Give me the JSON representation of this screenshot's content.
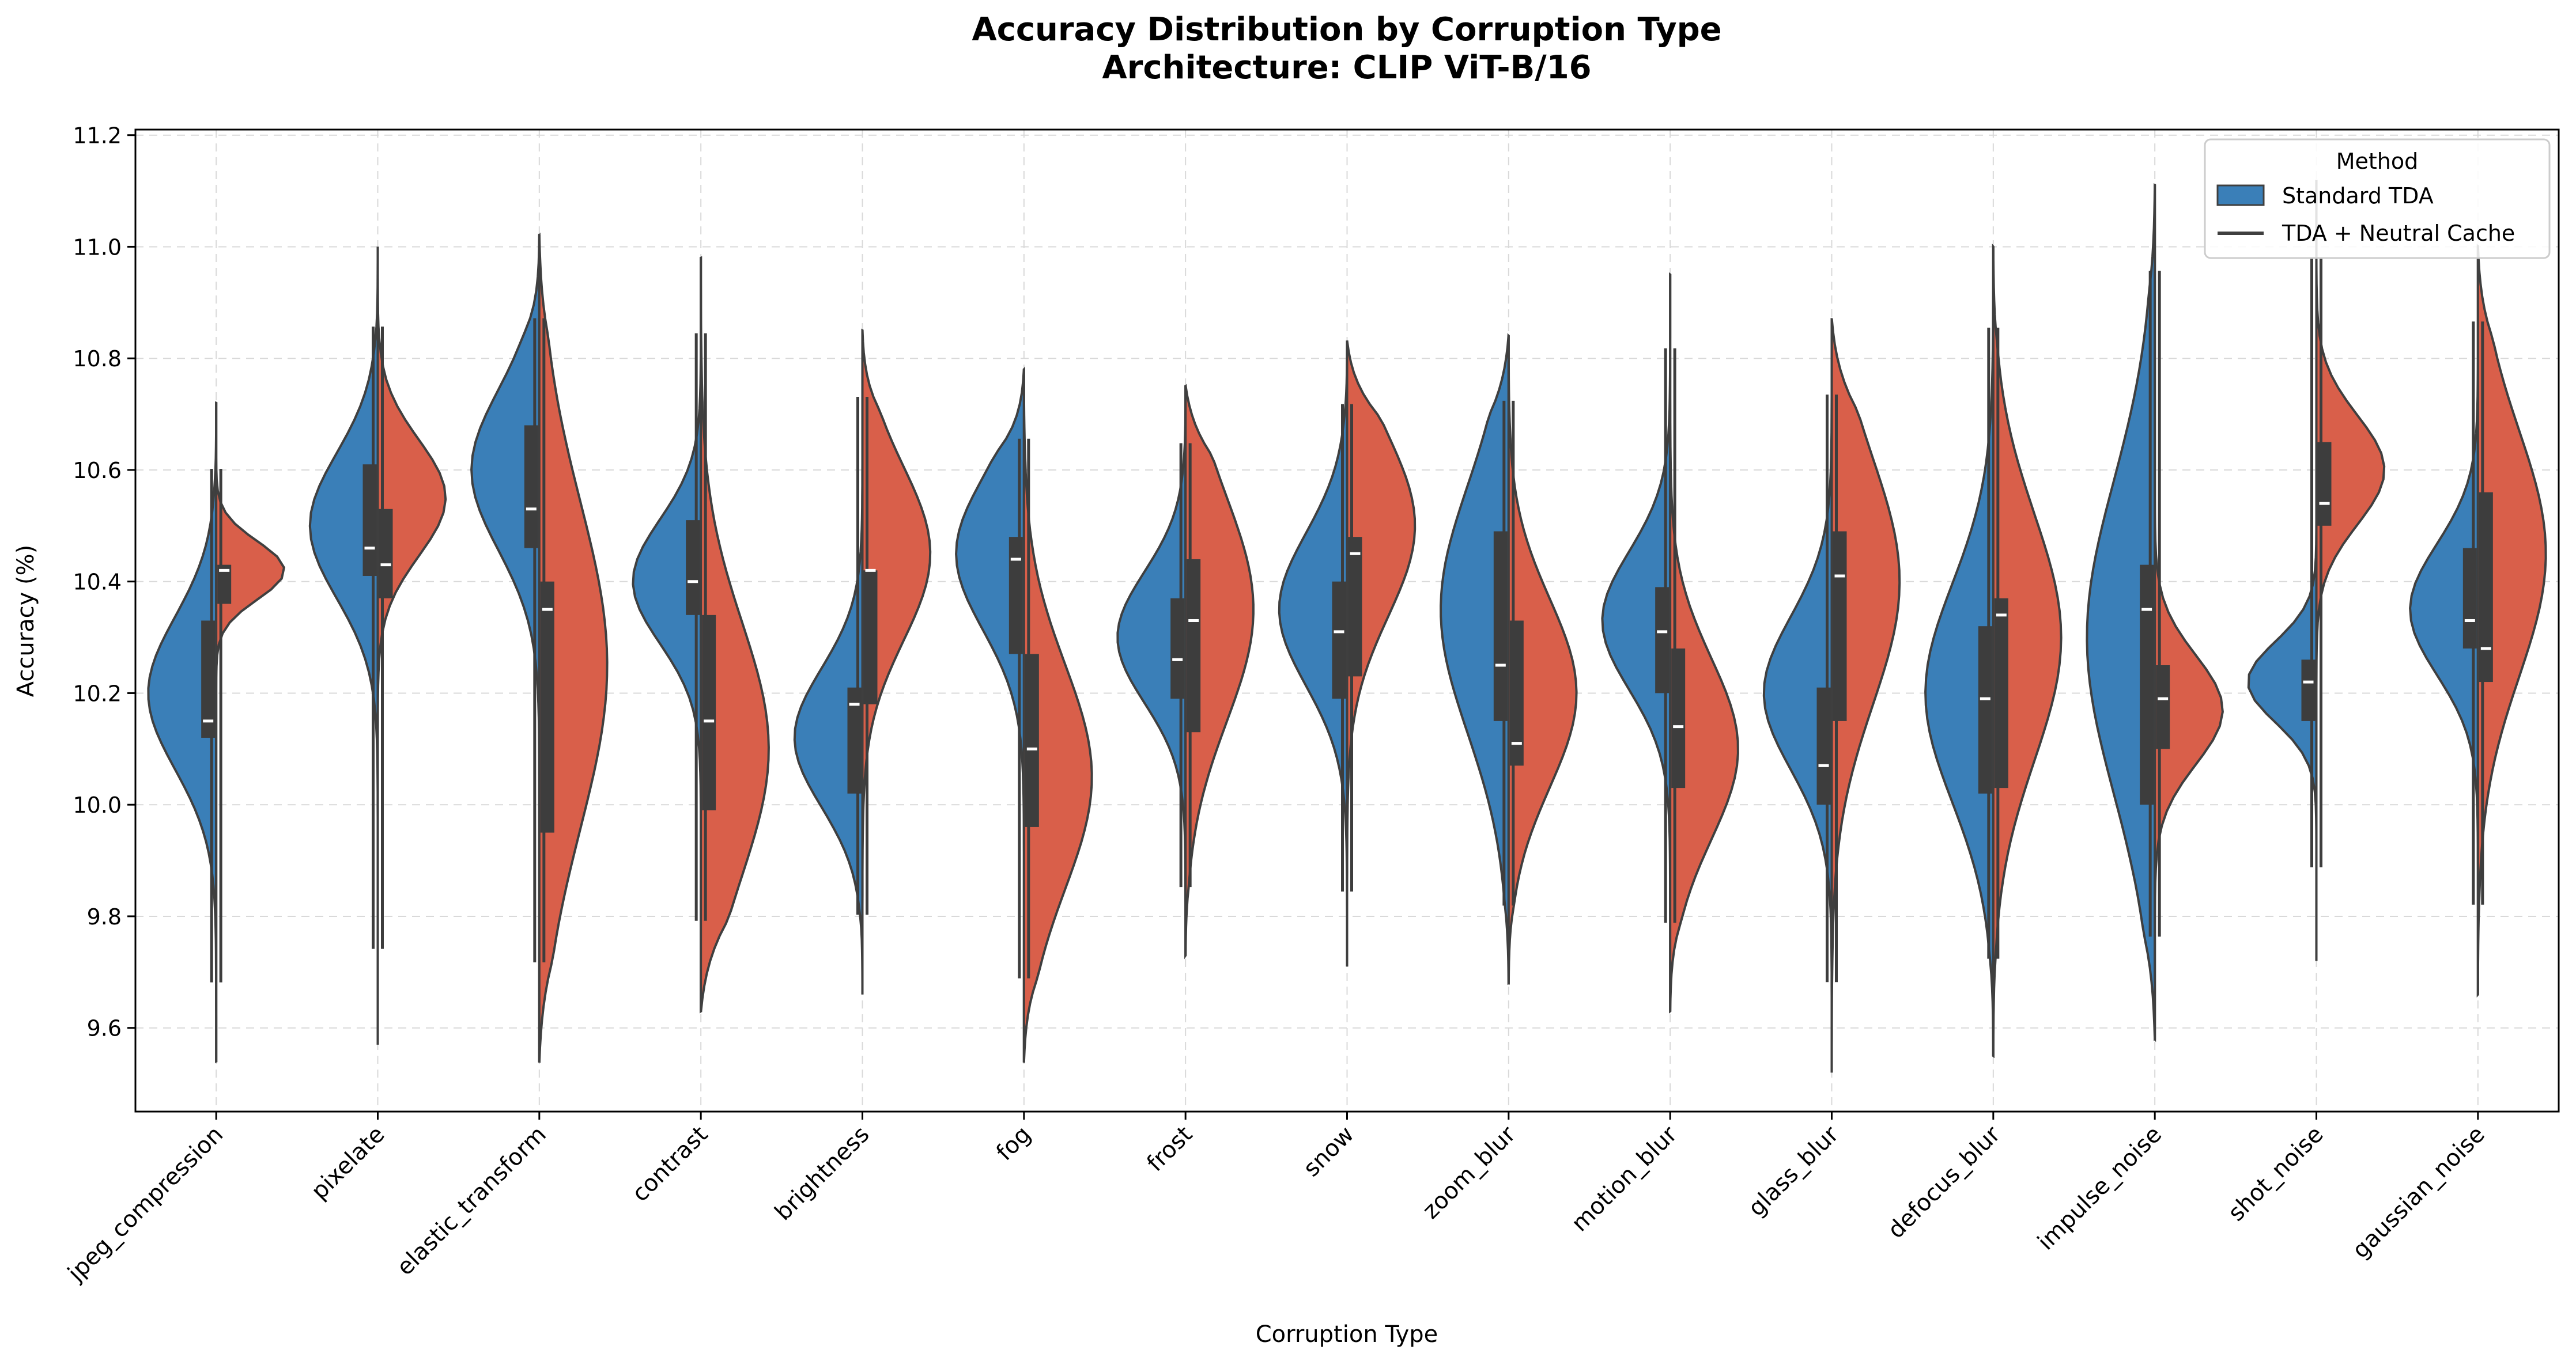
{
  "chart_data": {
    "type": "violin",
    "title_line1": "Accuracy Distribution by Corruption Type",
    "title_line2": "Architecture: CLIP ViT-B/16",
    "xlabel": "Corruption Type",
    "ylabel": "Accuracy (%)",
    "ylim": [
      9.45,
      11.21
    ],
    "yticks": [
      9.6,
      9.8,
      10.0,
      10.2,
      10.4,
      10.6,
      10.8,
      11.0,
      11.2
    ],
    "ytick_labels": [
      "9.6",
      "9.8",
      "10.0",
      "10.2",
      "10.4",
      "10.6",
      "10.8",
      "11.0",
      "11.2"
    ],
    "grid": true,
    "split": true,
    "legend": {
      "title": "Method",
      "position": "top-right",
      "entries": [
        {
          "label": "Standard TDA",
          "color": "#3a7fb8"
        },
        {
          "label": "TDA + Neutral Cache",
          "color": "#d95f4a"
        }
      ]
    },
    "colors": {
      "left": "#3a7fb8",
      "right": "#d95f4a",
      "edge": "#3f3f3f",
      "box": "#3d3d3d",
      "median": "#ffffff",
      "grid": "#d9d9d9"
    },
    "categories": [
      "jpeg_compression",
      "pixelate",
      "elastic_transform",
      "contrast",
      "brightness",
      "fog",
      "frost",
      "snow",
      "zoom_blur",
      "motion_blur",
      "glass_blur",
      "defocus_blur",
      "impulse_noise",
      "shot_noise",
      "gaussian_noise"
    ],
    "series": [
      {
        "name": "Standard TDA",
        "stats": [
          {
            "min": 9.54,
            "max": 10.72,
            "q1": 10.12,
            "q3": 10.33,
            "median": 10.15,
            "mode": 10.2
          },
          {
            "min": 9.57,
            "max": 11.0,
            "q1": 10.41,
            "q3": 10.61,
            "median": 10.46,
            "mode": 10.5
          },
          {
            "min": 9.54,
            "max": 11.02,
            "q1": 10.46,
            "q3": 10.68,
            "median": 10.53,
            "mode": 10.6
          },
          {
            "min": 9.63,
            "max": 10.98,
            "q1": 10.34,
            "q3": 10.51,
            "median": 10.4,
            "mode": 10.4
          },
          {
            "min": 9.66,
            "max": 10.85,
            "q1": 10.02,
            "q3": 10.21,
            "median": 10.18,
            "mode": 10.12
          },
          {
            "min": 9.54,
            "max": 10.78,
            "q1": 10.27,
            "q3": 10.48,
            "median": 10.44,
            "mode": 10.45
          },
          {
            "min": 9.73,
            "max": 10.75,
            "q1": 10.19,
            "q3": 10.37,
            "median": 10.26,
            "mode": 10.3
          },
          {
            "min": 9.71,
            "max": 10.83,
            "q1": 10.19,
            "q3": 10.4,
            "median": 10.31,
            "mode": 10.35
          },
          {
            "min": 9.68,
            "max": 10.84,
            "q1": 10.15,
            "q3": 10.49,
            "median": 10.25,
            "mode": 10.35
          },
          {
            "min": 9.63,
            "max": 10.95,
            "q1": 10.2,
            "q3": 10.39,
            "median": 10.31,
            "mode": 10.33
          },
          {
            "min": 9.52,
            "max": 10.87,
            "q1": 10.0,
            "q3": 10.21,
            "median": 10.07,
            "mode": 10.2
          },
          {
            "min": 9.55,
            "max": 11.0,
            "q1": 10.02,
            "q3": 10.32,
            "median": 10.19,
            "mode": 10.2
          },
          {
            "min": 9.58,
            "max": 11.11,
            "q1": 10.0,
            "q3": 10.43,
            "median": 10.35,
            "mode": 10.3
          },
          {
            "min": 9.72,
            "max": 11.12,
            "q1": 10.15,
            "q3": 10.26,
            "median": 10.22,
            "mode": 10.22
          },
          {
            "min": 9.66,
            "max": 11.0,
            "q1": 10.28,
            "q3": 10.46,
            "median": 10.33,
            "mode": 10.35
          }
        ]
      },
      {
        "name": "TDA + Neutral Cache",
        "stats": [
          {
            "min": 9.54,
            "max": 10.72,
            "q1": 10.36,
            "q3": 10.43,
            "median": 10.42,
            "mode": 10.42
          },
          {
            "min": 9.57,
            "max": 11.0,
            "q1": 10.37,
            "q3": 10.53,
            "median": 10.43,
            "mode": 10.55
          },
          {
            "min": 9.54,
            "max": 11.02,
            "q1": 9.95,
            "q3": 10.4,
            "median": 10.35,
            "mode": 10.25
          },
          {
            "min": 9.63,
            "max": 10.98,
            "q1": 9.99,
            "q3": 10.34,
            "median": 10.15,
            "mode": 10.1
          },
          {
            "min": 9.66,
            "max": 10.85,
            "q1": 10.18,
            "q3": 10.42,
            "median": 10.42,
            "mode": 10.45
          },
          {
            "min": 9.54,
            "max": 10.78,
            "q1": 9.96,
            "q3": 10.27,
            "median": 10.1,
            "mode": 10.05
          },
          {
            "min": 9.73,
            "max": 10.75,
            "q1": 10.13,
            "q3": 10.44,
            "median": 10.33,
            "mode": 10.35
          },
          {
            "min": 9.71,
            "max": 10.83,
            "q1": 10.23,
            "q3": 10.48,
            "median": 10.45,
            "mode": 10.5
          },
          {
            "min": 9.68,
            "max": 10.84,
            "q1": 10.07,
            "q3": 10.33,
            "median": 10.11,
            "mode": 10.2
          },
          {
            "min": 9.63,
            "max": 10.95,
            "q1": 10.03,
            "q3": 10.28,
            "median": 10.14,
            "mode": 10.1
          },
          {
            "min": 9.52,
            "max": 10.87,
            "q1": 10.15,
            "q3": 10.49,
            "median": 10.41,
            "mode": 10.4
          },
          {
            "min": 9.55,
            "max": 11.0,
            "q1": 10.03,
            "q3": 10.37,
            "median": 10.34,
            "mode": 10.3
          },
          {
            "min": 9.58,
            "max": 11.11,
            "q1": 10.1,
            "q3": 10.25,
            "median": 10.19,
            "mode": 10.17
          },
          {
            "min": 9.72,
            "max": 11.12,
            "q1": 10.5,
            "q3": 10.65,
            "median": 10.54,
            "mode": 10.6
          },
          {
            "min": 9.66,
            "max": 11.0,
            "q1": 10.22,
            "q3": 10.56,
            "median": 10.28,
            "mode": 10.45
          }
        ]
      }
    ]
  }
}
